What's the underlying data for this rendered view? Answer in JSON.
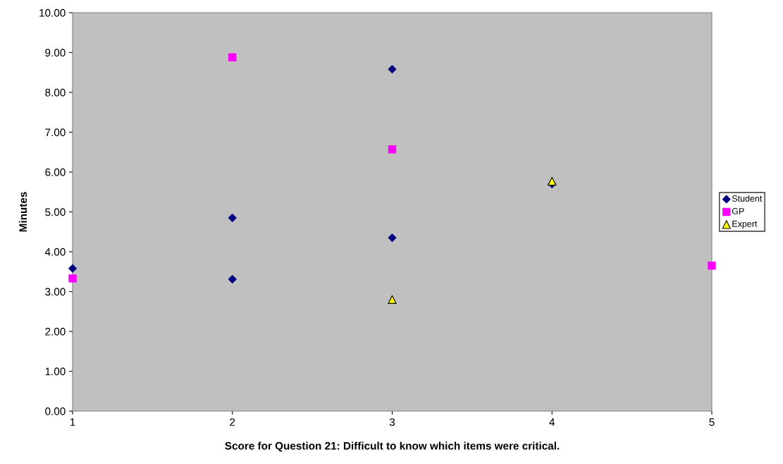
{
  "chart_data": {
    "type": "scatter",
    "xlabel": "Score for Question 21: Difficult to know which items were critical.",
    "ylabel": "Minutes",
    "xlim": [
      1,
      5
    ],
    "xticks": [
      1,
      2,
      3,
      4,
      5
    ],
    "ylim": [
      0,
      10
    ],
    "yticks": [
      {
        "value": 0,
        "label": "0.00"
      },
      {
        "value": 1,
        "label": "1.00"
      },
      {
        "value": 2,
        "label": "2.00"
      },
      {
        "value": 3,
        "label": "3.00"
      },
      {
        "value": 4,
        "label": "4.00"
      },
      {
        "value": 5,
        "label": "5.00"
      },
      {
        "value": 6,
        "label": "6.00"
      },
      {
        "value": 7,
        "label": "7.00"
      },
      {
        "value": 8,
        "label": "8.00"
      },
      {
        "value": 9,
        "label": "9.00"
      },
      {
        "value": 10,
        "label": "10.00"
      }
    ],
    "grid": false,
    "legend": "right",
    "series": [
      {
        "name": "Student",
        "color": "#000080",
        "marker": "diamond",
        "x": [
          1,
          2,
          2,
          3,
          3,
          4
        ],
        "values": [
          3.58,
          4.85,
          3.31,
          8.58,
          4.35,
          5.7
        ]
      },
      {
        "name": "GP",
        "color": "#ff00ff",
        "marker": "square",
        "x": [
          1,
          2,
          3,
          5
        ],
        "values": [
          3.33,
          8.88,
          6.57,
          3.65
        ]
      },
      {
        "name": "Expert",
        "color": "#ffff00",
        "marker": "triangle",
        "x": [
          3,
          4
        ],
        "values": [
          2.8,
          5.77
        ]
      }
    ]
  }
}
